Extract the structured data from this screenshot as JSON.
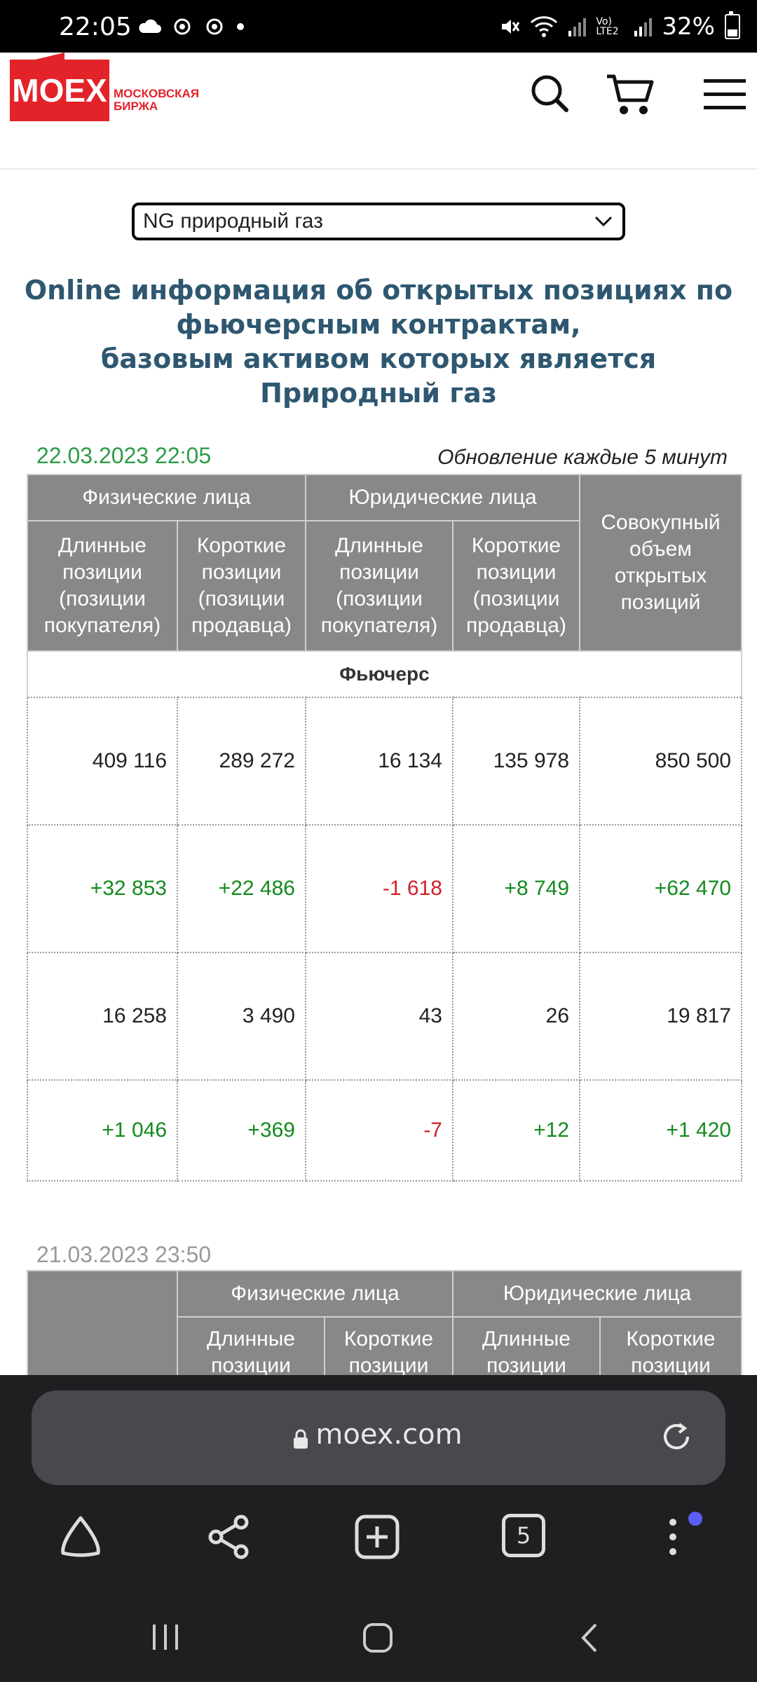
{
  "status_bar": {
    "time": "22:05",
    "battery": "32%",
    "network": "Vo) LTE2"
  },
  "header": {
    "logo_main": "MOEX",
    "logo_sub_line1": "МОСКОВСКАЯ",
    "logo_sub_line2": "БИРЖА",
    "icons": [
      "search-icon",
      "cart-icon",
      "menu-icon"
    ]
  },
  "selector": {
    "value": "NG природный газ"
  },
  "headline": {
    "line1": "Online информация об открытых позициях по",
    "line2": "фьючерсным контрактам,",
    "line3": "базовым активом которых является",
    "line4": "Природный газ"
  },
  "current": {
    "date": "22.03.2023 22:05",
    "update_note": "Обновление каждые 5 минут",
    "groups": {
      "physical": "Физические лица",
      "legal": "Юридические лица",
      "total": "Совокупный объем открытых позиций"
    },
    "sub": {
      "long": "Длинные позиции (позиции покупателя)",
      "short": "Короткие позиции (позиции продавца)"
    },
    "section": "Фьючерс",
    "rows": [
      [
        "409 116",
        "289 272",
        "16 134",
        "135 978",
        "850 500"
      ],
      [
        "+32 853",
        "+22 486",
        "-1 618",
        "+8 749",
        "+62 470"
      ],
      [
        "16 258",
        "3 490",
        "43",
        "26",
        "19 817"
      ],
      [
        "+1 046",
        "+369",
        "-7",
        "+12",
        "+1 420"
      ]
    ]
  },
  "previous": {
    "date": "21.03.2023 23:50",
    "groups": {
      "physical": "Физические лица",
      "legal": "Юридические лица"
    },
    "sub": {
      "long": "Длинные позиции",
      "short": "Короткие позиции"
    }
  },
  "browser": {
    "url": "moex.com",
    "tabs_count": "5"
  },
  "colors": {
    "brand": "#e3232a",
    "headline": "#2e5770",
    "positive": "#138a1e",
    "negative": "#d2202a",
    "header_cell": "#888888"
  }
}
